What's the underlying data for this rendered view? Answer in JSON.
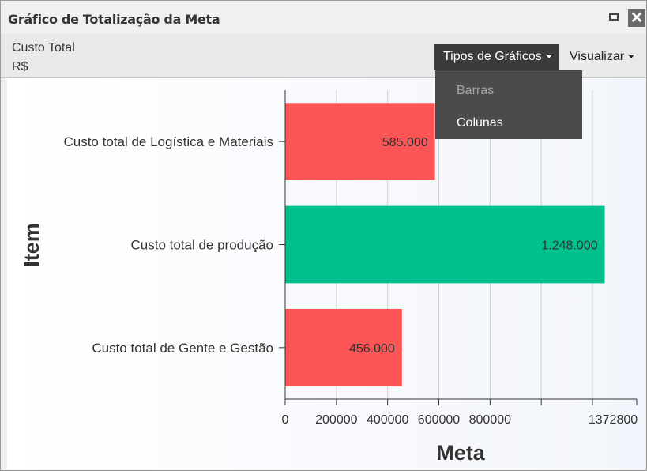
{
  "window": {
    "title": "Gráfico de Totalização da Meta"
  },
  "header": {
    "metric_label": "Custo Total",
    "metric_unit": "R$",
    "chart_types_button": "Tipos de Gráficos",
    "view_button": "Visualizar"
  },
  "dropdown": {
    "items": [
      {
        "label": "Barras",
        "state": "disabled"
      },
      {
        "label": "Colunas",
        "state": "enabled"
      }
    ]
  },
  "chart_data": {
    "type": "bar",
    "orientation": "horizontal",
    "categories": [
      "Custo total de Logística e Materiais",
      "Custo total de produção",
      "Custo total de Gente e Gestão"
    ],
    "values": [
      585000,
      1248000,
      456000
    ],
    "value_labels": [
      "585.000",
      "1.248.000",
      "456.000"
    ],
    "bar_colors": [
      "#fb5555",
      "#00c08e",
      "#fb5555"
    ],
    "xlabel": "Meta",
    "ylabel": "Item",
    "xlim": [
      0,
      1372800
    ],
    "xticks": [
      0,
      200000,
      400000,
      600000,
      800000,
      1372800
    ],
    "xtick_labels": [
      "0",
      "200000",
      "400000",
      "600000",
      "800000",
      "1372800"
    ],
    "gridlines_at": [
      200000,
      400000,
      600000,
      800000,
      1000000,
      1200000
    ],
    "grid": true
  }
}
